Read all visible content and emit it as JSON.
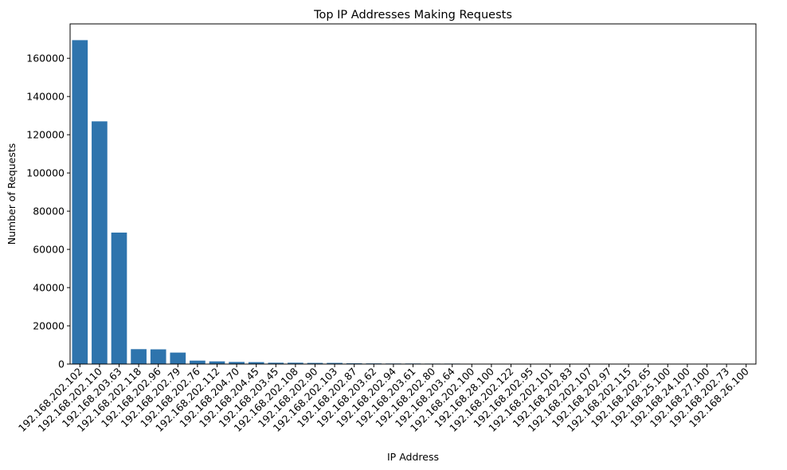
{
  "chart_data": {
    "type": "bar",
    "title": "Top IP Addresses Making Requests",
    "xlabel": "IP Address",
    "ylabel": "Number of Requests",
    "ylim": [
      0,
      178000
    ],
    "yticks": [
      0,
      20000,
      40000,
      60000,
      80000,
      100000,
      120000,
      140000,
      160000
    ],
    "ytick_labels": [
      "0",
      "20000",
      "40000",
      "60000",
      "80000",
      "100000",
      "120000",
      "140000",
      "160000"
    ],
    "bar_color": "#2e74ad",
    "grid": false,
    "legend": "none",
    "categories": [
      "192.168.202.102",
      "192.168.202.110",
      "192.168.203.63",
      "192.168.202.118",
      "192.168.202.96",
      "192.168.202.79",
      "192.168.202.76",
      "192.168.202.112",
      "192.168.204.70",
      "192.168.204.45",
      "192.168.203.45",
      "192.168.202.108",
      "192.168.202.90",
      "192.168.202.103",
      "192.168.202.87",
      "192.168.203.62",
      "192.168.202.94",
      "192.168.203.61",
      "192.168.202.80",
      "192.168.203.64",
      "192.168.202.100",
      "192.168.28.100",
      "192.168.202.122",
      "192.168.202.95",
      "192.168.202.101",
      "192.168.202.83",
      "192.168.202.107",
      "192.168.202.97",
      "192.168.202.115",
      "192.168.202.65",
      "192.168.25.100",
      "192.168.24.100",
      "192.168.27.100",
      "192.168.202.73",
      "192.168.26.100"
    ],
    "values": [
      169500,
      127000,
      68800,
      7800,
      7700,
      6000,
      1800,
      1400,
      1100,
      1000,
      700,
      700,
      600,
      600,
      400,
      350,
      300,
      300,
      250,
      250,
      200,
      200,
      150,
      150,
      120,
      100,
      80,
      70,
      60,
      50,
      40,
      35,
      30,
      25,
      20
    ]
  }
}
